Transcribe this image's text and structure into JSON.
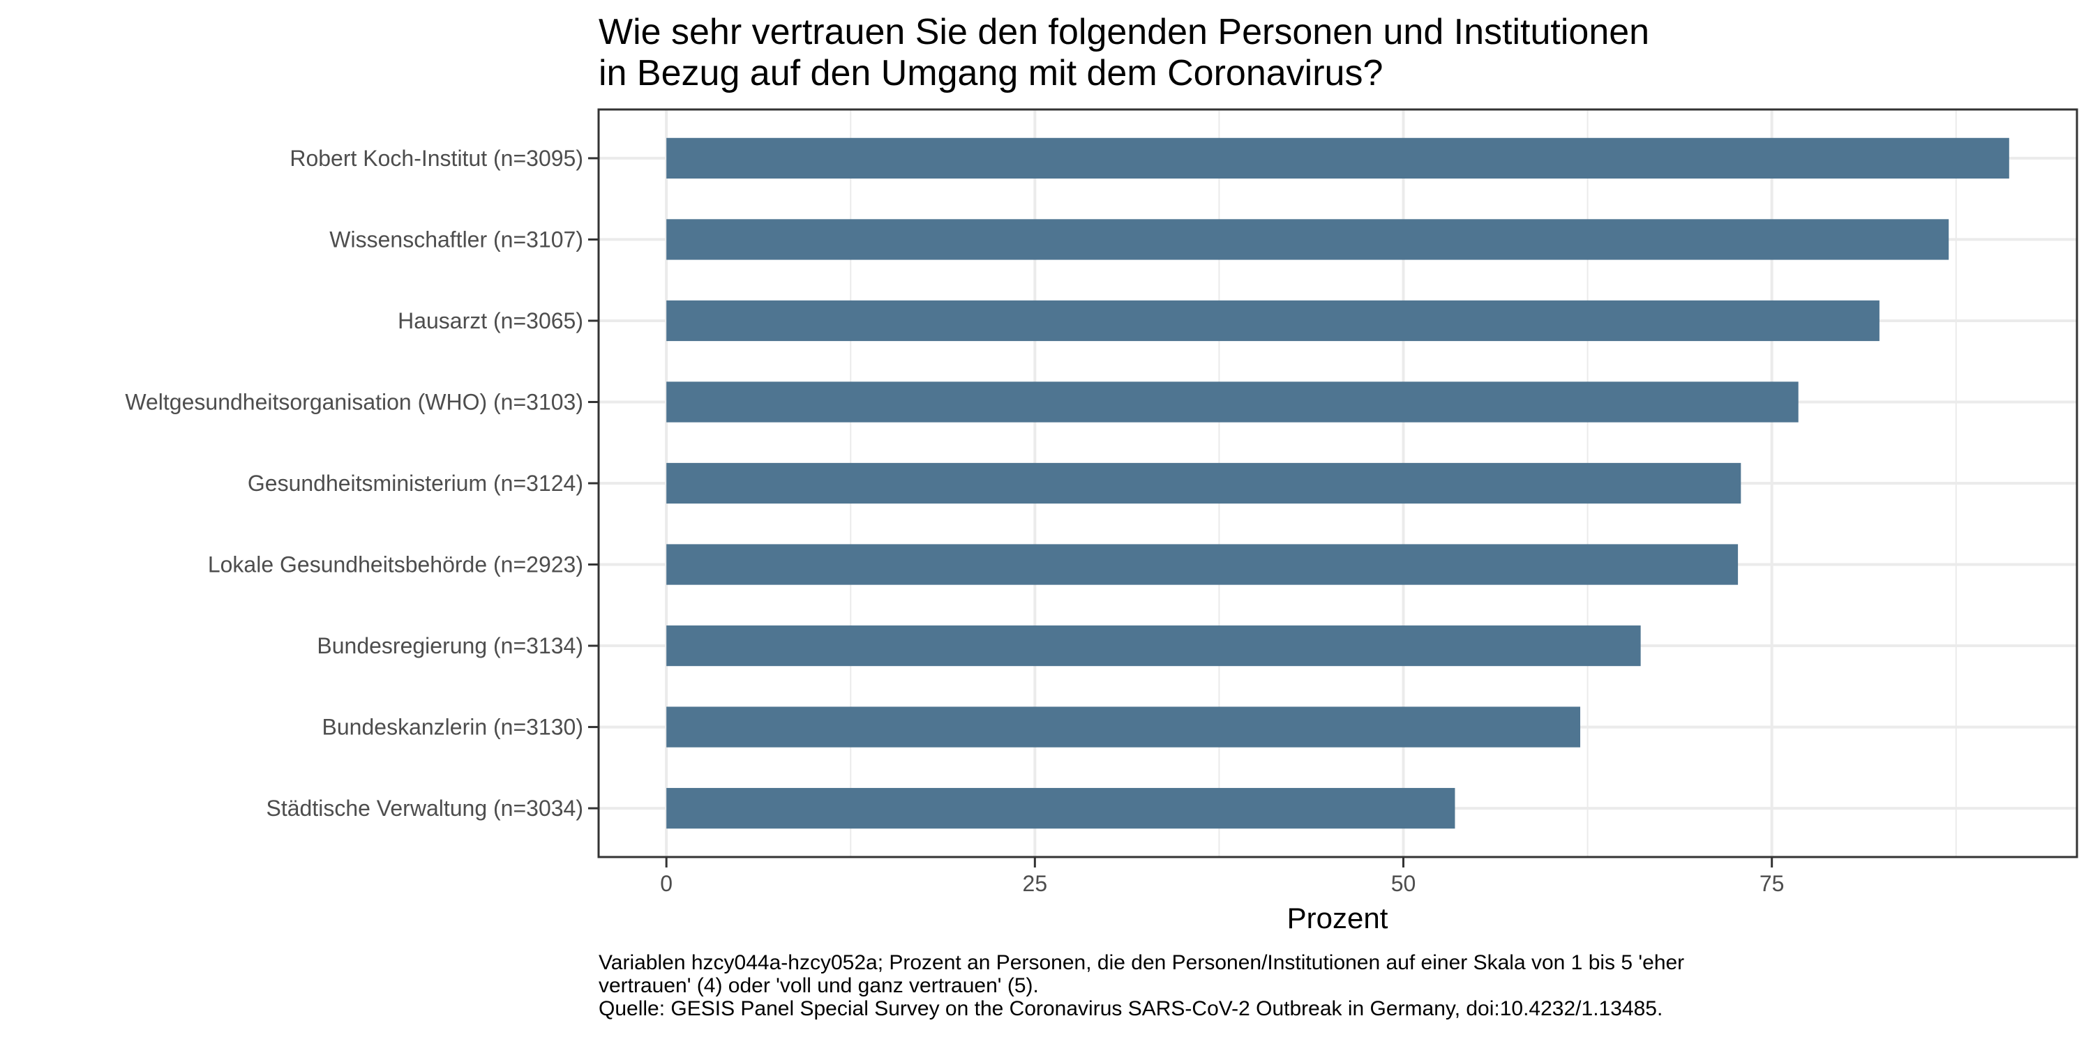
{
  "chart_data": {
    "type": "bar",
    "orientation": "horizontal",
    "title": [
      "Wie sehr vertrauen Sie den folgenden Personen und Institutionen",
      "in Bezug auf den Umgang mit dem Coronavirus?"
    ],
    "xlabel": "Prozent",
    "ylabel": "",
    "categories": [
      "Robert Koch-Institut (n=3095)",
      "Wissenschaftler (n=3107)",
      "Hausarzt (n=3065)",
      "Weltgesundheitsorganisation (WHO) (n=3103)",
      "Gesundheitsministerium (n=3124)",
      "Lokale Gesundheitsbehörde (n=2923)",
      "Bundesregierung (n=3134)",
      "Bundeskanzlerin (n=3130)",
      "Städtische Verwaltung (n=3034)"
    ],
    "values": [
      91.1,
      87.0,
      82.3,
      76.8,
      72.9,
      72.7,
      66.1,
      62.0,
      53.5
    ],
    "xlim": [
      -4.6,
      95.7
    ],
    "x_ticks": [
      0,
      25,
      50,
      75
    ],
    "x_tick_labels": [
      "0",
      "25",
      "50",
      "75"
    ],
    "x_minor_ticks": [
      12.5,
      37.5,
      62.5,
      87.5
    ],
    "grid": true,
    "legend": "none",
    "bar_color": "#4F7591",
    "caption": [
      "Variablen hzcy044a-hzcy052a; Prozent an Personen, die den Personen/Institutionen auf einer Skala von 1 bis 5 'eher",
      "vertrauen' (4) oder 'voll und ganz vertrauen' (5).",
      "Quelle: GESIS Panel Special Survey on the Coronavirus SARS-CoV-2 Outbreak in Germany, doi:10.4232/1.13485."
    ]
  },
  "colors": {
    "bar": "#4F7591",
    "panel_border": "#333333",
    "grid": "#EBEBEB",
    "axis_text": "#4D4D4D",
    "text": "#000000"
  }
}
